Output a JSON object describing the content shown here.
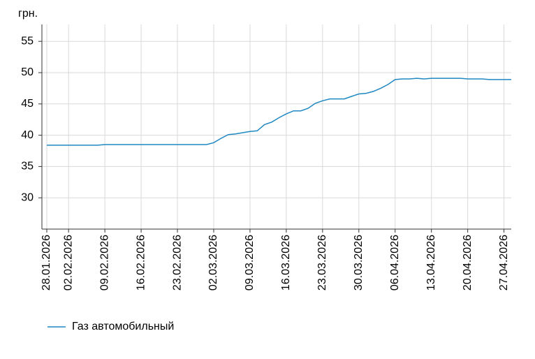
{
  "chart_data": {
    "type": "line",
    "y_label": "грн.",
    "categories": [
      "28.01.2026",
      null,
      null,
      "02.02.2026",
      null,
      null,
      null,
      null,
      "09.02.2026",
      null,
      null,
      null,
      null,
      "16.02.2026",
      null,
      null,
      null,
      null,
      "23.02.2026",
      null,
      null,
      null,
      null,
      "02.03.2026",
      null,
      null,
      null,
      null,
      "09.03.2026",
      null,
      null,
      null,
      null,
      "16.03.2026",
      null,
      null,
      null,
      null,
      "23.03.2026",
      null,
      null,
      null,
      null,
      "30.03.2026",
      null,
      null,
      null,
      null,
      "06.04.2026",
      null,
      null,
      null,
      null,
      "13.04.2026",
      null,
      null,
      null,
      null,
      "20.04.2026",
      null,
      null,
      null,
      null,
      "27.04.2026",
      null
    ],
    "series": [
      {
        "name": "Газ автомобильный",
        "color": "#1f88c2",
        "values": [
          38.4,
          38.4,
          38.4,
          38.4,
          38.4,
          38.4,
          38.4,
          38.4,
          38.5,
          38.5,
          38.5,
          38.5,
          38.5,
          38.5,
          38.5,
          38.5,
          38.5,
          38.5,
          38.5,
          38.5,
          38.5,
          38.5,
          38.5,
          38.8,
          39.5,
          40.1,
          40.2,
          40.4,
          40.6,
          40.7,
          41.7,
          42.1,
          42.8,
          43.4,
          43.9,
          43.9,
          44.3,
          45.1,
          45.5,
          45.8,
          45.8,
          45.8,
          46.2,
          46.6,
          46.7,
          47.0,
          47.5,
          48.1,
          48.9,
          49.0,
          49.0,
          49.1,
          49.0,
          49.1,
          49.1,
          49.1,
          49.1,
          49.1,
          49.0,
          49.0,
          49.0,
          48.9,
          48.9,
          48.9,
          48.9
        ]
      }
    ],
    "ylim": [
      25,
      57.7
    ],
    "yticks": [
      30,
      35,
      40,
      45,
      50,
      55
    ],
    "grid": true
  }
}
